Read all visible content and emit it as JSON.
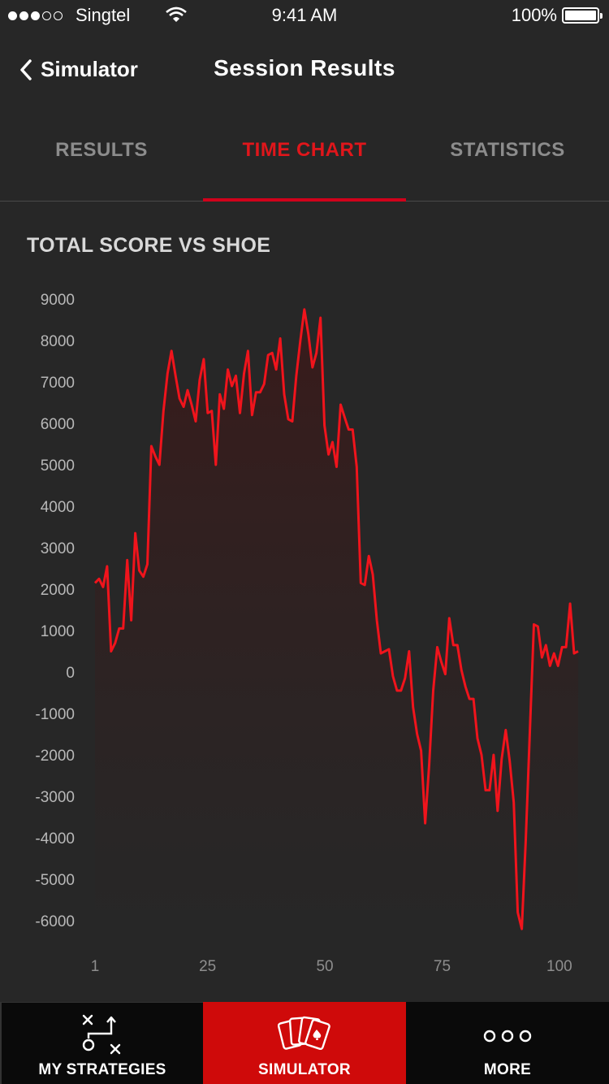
{
  "status_bar": {
    "carrier": "Singtel",
    "time": "9:41 AM",
    "battery": "100%",
    "signal_bars": 3,
    "signal_total": 5
  },
  "nav": {
    "back_label": "Simulator",
    "title": "Session Results"
  },
  "tabs": [
    {
      "label": "RESULTS",
      "active": false
    },
    {
      "label": "TIME CHART",
      "active": true
    },
    {
      "label": "STATISTICS",
      "active": false
    }
  ],
  "chart_title": "TOTAL SCORE VS SHOE",
  "chart_data": {
    "type": "area",
    "title": "TOTAL SCORE VS SHOE",
    "xlabel": "",
    "ylabel": "",
    "xlim": [
      1,
      104
    ],
    "ylim": [
      -6000,
      9000
    ],
    "x_ticks": [
      1,
      25,
      50,
      75,
      100
    ],
    "y_ticks": [
      9000,
      8000,
      7000,
      6000,
      5000,
      4000,
      3000,
      2000,
      1000,
      0,
      -1000,
      -2000,
      -3000,
      -4000,
      -5000,
      -6000
    ],
    "grid": false,
    "line_color": "#f0141c",
    "fill_color": "#3a1a1a",
    "series": [
      {
        "values": [
          2150,
          2250,
          2050,
          2550,
          500,
          700,
          1050,
          1050,
          2700,
          1250,
          3350,
          2450,
          2300,
          2600,
          5450,
          5200,
          5000,
          6300,
          7200,
          7750,
          7150,
          6600,
          6400,
          6800,
          6450,
          6050,
          7050,
          7550,
          6250,
          6300,
          5000,
          6700,
          6350,
          7300,
          6900,
          7150,
          6250,
          7200,
          7750,
          6200,
          6750,
          6750,
          6950,
          7650,
          7700,
          7300,
          8050,
          6700,
          6100,
          6050,
          7150,
          8000,
          8750,
          8150,
          7350,
          7700,
          8550,
          5950,
          5250,
          5550,
          4950,
          6450,
          6150,
          5850,
          5850,
          4950,
          2150,
          2100,
          2800,
          2350,
          1250,
          450,
          500,
          550,
          -100,
          -450,
          -450,
          -150,
          500,
          -850,
          -1500,
          -1900,
          -3650,
          -2250,
          -450,
          600,
          250,
          -50,
          1300,
          650,
          650,
          50,
          -350,
          -650,
          -650,
          -1600,
          -2000,
          -2850,
          -2850,
          -2000,
          -3350,
          -2100,
          -1400,
          -2150,
          -3150,
          -5800,
          -6200,
          -4050,
          -1450,
          1150,
          1100,
          350,
          650,
          150,
          450,
          150,
          600,
          600,
          1650,
          450,
          500
        ]
      }
    ]
  },
  "tab_bar": [
    {
      "label": "MY STRATEGIES",
      "icon": "strategy-play-icon",
      "active": false
    },
    {
      "label": "SIMULATOR",
      "icon": "playing-cards-icon",
      "active": true
    },
    {
      "label": "MORE",
      "icon": "more-dots-icon",
      "active": false
    }
  ]
}
